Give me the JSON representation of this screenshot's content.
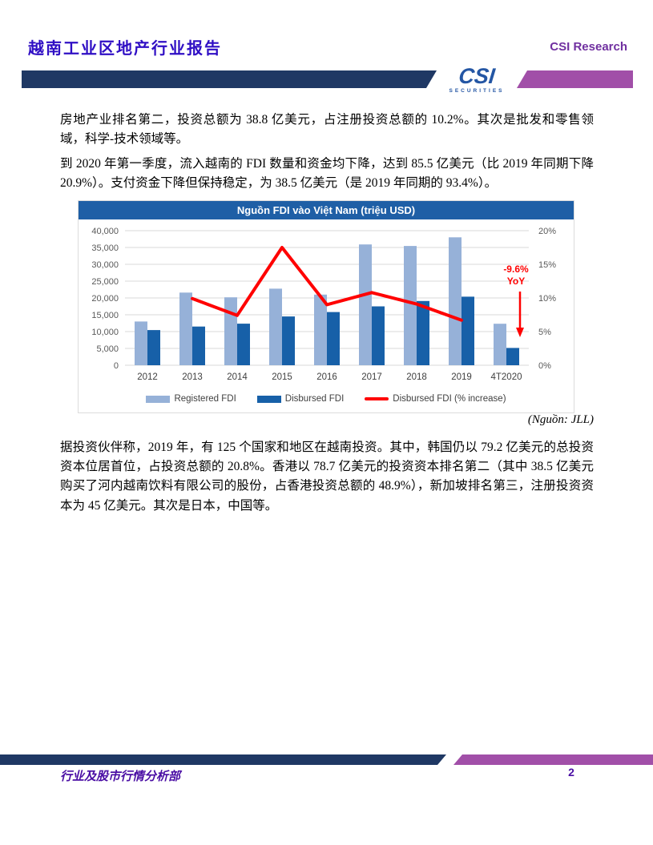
{
  "header": {
    "title": "越南工业区地产行业报告",
    "brand": "CSI Research",
    "logo": {
      "text": "CSI",
      "subtext": "SECURITIES"
    }
  },
  "paragraphs": {
    "p1": "房地产业排名第二，投资总额为 38.8 亿美元，占注册投资总额的 10.2%。其次是批发和零售领域，科学-技术领域等。",
    "p2": "到 2020 年第一季度，流入越南的 FDI 数量和资金均下降，达到 85.5 亿美元（比 2019 年同期下降 20.9%）。支付资金下降但保持稳定，为 38.5 亿美元（是 2019 年同期的 93.4%）。",
    "source": "(Nguồn: JLL)",
    "p3": "据投资伙伴称，2019 年，有 125 个国家和地区在越南投资。其中，韩国仍以 79.2 亿美元的总投资资本位居首位，占投资总额的 20.8%。香港以 78.7 亿美元的投资资本排名第二（其中 38.5 亿美元购买了河内越南饮料有限公司的股份，占香港投资总额的 48.9%），新加坡排名第三，注册投资资本为 45 亿美元。其次是日本，中国等。"
  },
  "chart_data": {
    "type": "bar+line",
    "title": "Nguồn FDI vào Việt Nam (triệu USD)",
    "categories": [
      "2012",
      "2013",
      "2014",
      "2015",
      "2016",
      "2017",
      "2018",
      "2019",
      "4T2020"
    ],
    "series": [
      {
        "name": "Registered FDI",
        "type": "bar",
        "axis": "left",
        "color": "#96B1D8",
        "values": [
          13000,
          21600,
          20200,
          22760,
          21000,
          35900,
          35460,
          38020,
          12330
        ]
      },
      {
        "name": "Disbursed FDI",
        "type": "bar",
        "axis": "left",
        "color": "#1760A8",
        "values": [
          10460,
          11500,
          12350,
          14500,
          15800,
          17500,
          19100,
          20380,
          5150
        ]
      },
      {
        "name": "Disbursed FDI (% increase)",
        "type": "line",
        "axis": "right",
        "color": "#FF0000",
        "values": [
          null,
          9.9,
          7.4,
          17.5,
          9.0,
          10.8,
          9.1,
          6.7,
          null
        ]
      }
    ],
    "left_axis": {
      "min": 0,
      "max": 40000,
      "step": 5000,
      "ticks": [
        "40,000",
        "35,000",
        "30,000",
        "25,000",
        "20,000",
        "15,000",
        "10,000",
        "5,000",
        "0"
      ]
    },
    "right_axis": {
      "min": 0,
      "max": 20,
      "step": 5,
      "ticks": [
        "20%",
        "15%",
        "10%",
        "5%",
        "0%"
      ]
    },
    "annotation": {
      "line1": "-9.6%",
      "line2": "YoY",
      "color": "#FF0000"
    },
    "legend_position": "bottom",
    "grid": true,
    "grid_color": "#D9D9D9",
    "axis_text_color": "#595959",
    "category_text_color": "#404040",
    "title_bar_color": "#1F5FA6"
  },
  "footer": {
    "department": "行业及股市行情分析部",
    "page_number": "2"
  }
}
